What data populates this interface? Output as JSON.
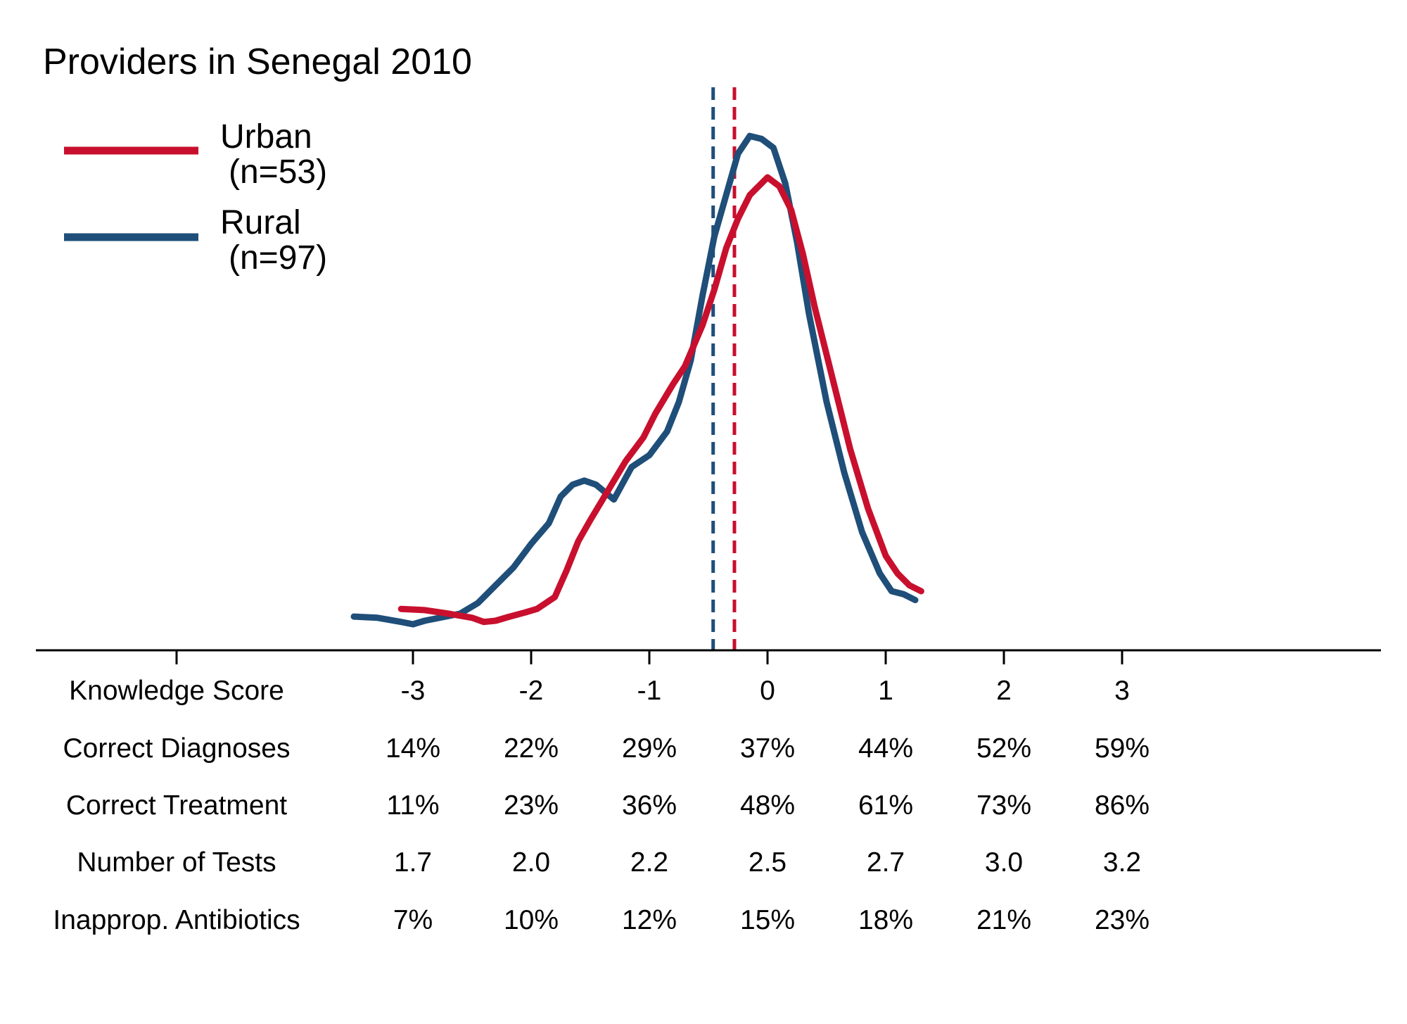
{
  "chart_data": {
    "type": "line",
    "title": "Providers in Senegal 2010",
    "xlabel": "Knowledge Score",
    "xlim": [
      -4.0,
      5.2
    ],
    "grid": false,
    "legend_position": "top-left",
    "series": [
      {
        "name": "Urban",
        "n_label": "(n=53)",
        "color": "#c8102e",
        "mean": -0.28,
        "points": [
          [
            -3.1,
            0.07
          ],
          [
            -2.9,
            0.068
          ],
          [
            -2.7,
            0.062
          ],
          [
            -2.5,
            0.055
          ],
          [
            -2.4,
            0.048
          ],
          [
            -2.3,
            0.05
          ],
          [
            -2.2,
            0.056
          ],
          [
            -2.05,
            0.064
          ],
          [
            -1.95,
            0.07
          ],
          [
            -1.8,
            0.09
          ],
          [
            -1.7,
            0.135
          ],
          [
            -1.6,
            0.185
          ],
          [
            -1.5,
            0.22
          ],
          [
            -1.35,
            0.27
          ],
          [
            -1.2,
            0.32
          ],
          [
            -1.05,
            0.36
          ],
          [
            -0.95,
            0.4
          ],
          [
            -0.8,
            0.45
          ],
          [
            -0.7,
            0.48
          ],
          [
            -0.55,
            0.55
          ],
          [
            -0.45,
            0.61
          ],
          [
            -0.35,
            0.68
          ],
          [
            -0.25,
            0.73
          ],
          [
            -0.15,
            0.77
          ],
          [
            0.0,
            0.8
          ],
          [
            0.1,
            0.785
          ],
          [
            0.2,
            0.745
          ],
          [
            0.3,
            0.67
          ],
          [
            0.4,
            0.58
          ],
          [
            0.55,
            0.46
          ],
          [
            0.7,
            0.34
          ],
          [
            0.85,
            0.24
          ],
          [
            1.0,
            0.16
          ],
          [
            1.1,
            0.13
          ],
          [
            1.2,
            0.11
          ],
          [
            1.3,
            0.1
          ]
        ]
      },
      {
        "name": "Rural",
        "n_label": "(n=97)",
        "color": "#1f4e79",
        "mean": -0.46,
        "points": [
          [
            -3.5,
            0.057
          ],
          [
            -3.3,
            0.055
          ],
          [
            -3.1,
            0.048
          ],
          [
            -3.0,
            0.044
          ],
          [
            -2.9,
            0.05
          ],
          [
            -2.75,
            0.056
          ],
          [
            -2.6,
            0.062
          ],
          [
            -2.45,
            0.08
          ],
          [
            -2.3,
            0.11
          ],
          [
            -2.15,
            0.14
          ],
          [
            -2.0,
            0.18
          ],
          [
            -1.85,
            0.215
          ],
          [
            -1.75,
            0.26
          ],
          [
            -1.65,
            0.28
          ],
          [
            -1.55,
            0.287
          ],
          [
            -1.45,
            0.28
          ],
          [
            -1.3,
            0.255
          ],
          [
            -1.15,
            0.31
          ],
          [
            -1.0,
            0.33
          ],
          [
            -0.85,
            0.37
          ],
          [
            -0.75,
            0.42
          ],
          [
            -0.65,
            0.49
          ],
          [
            -0.55,
            0.6
          ],
          [
            -0.45,
            0.7
          ],
          [
            -0.35,
            0.77
          ],
          [
            -0.25,
            0.84
          ],
          [
            -0.15,
            0.87
          ],
          [
            -0.05,
            0.865
          ],
          [
            0.05,
            0.85
          ],
          [
            0.15,
            0.79
          ],
          [
            0.25,
            0.69
          ],
          [
            0.35,
            0.57
          ],
          [
            0.5,
            0.42
          ],
          [
            0.65,
            0.3
          ],
          [
            0.8,
            0.2
          ],
          [
            0.95,
            0.13
          ],
          [
            1.05,
            0.1
          ],
          [
            1.15,
            0.095
          ],
          [
            1.25,
            0.085
          ]
        ]
      }
    ],
    "x_ticks": [
      -5,
      -3,
      -2,
      -1,
      0,
      1,
      2,
      3
    ],
    "table": {
      "columns": [
        "-3",
        "-2",
        "-1",
        "0",
        "1",
        "2",
        "3"
      ],
      "rows": [
        {
          "label": "Knowledge Score",
          "values": [
            "-3",
            "-2",
            "-1",
            "0",
            "1",
            "2",
            "3"
          ]
        },
        {
          "label": "Correct Diagnoses",
          "values": [
            "14%",
            "22%",
            "29%",
            "37%",
            "44%",
            "52%",
            "59%"
          ]
        },
        {
          "label": "Correct Treatment",
          "values": [
            "11%",
            "23%",
            "36%",
            "48%",
            "61%",
            "73%",
            "86%"
          ]
        },
        {
          "label": "Number of Tests",
          "values": [
            "1.7",
            "2.0",
            "2.2",
            "2.5",
            "2.7",
            "3.0",
            "3.2"
          ]
        },
        {
          "label": "Inapprop. Antibiotics",
          "values": [
            "7%",
            "10%",
            "12%",
            "15%",
            "18%",
            "21%",
            "23%"
          ]
        }
      ]
    }
  }
}
